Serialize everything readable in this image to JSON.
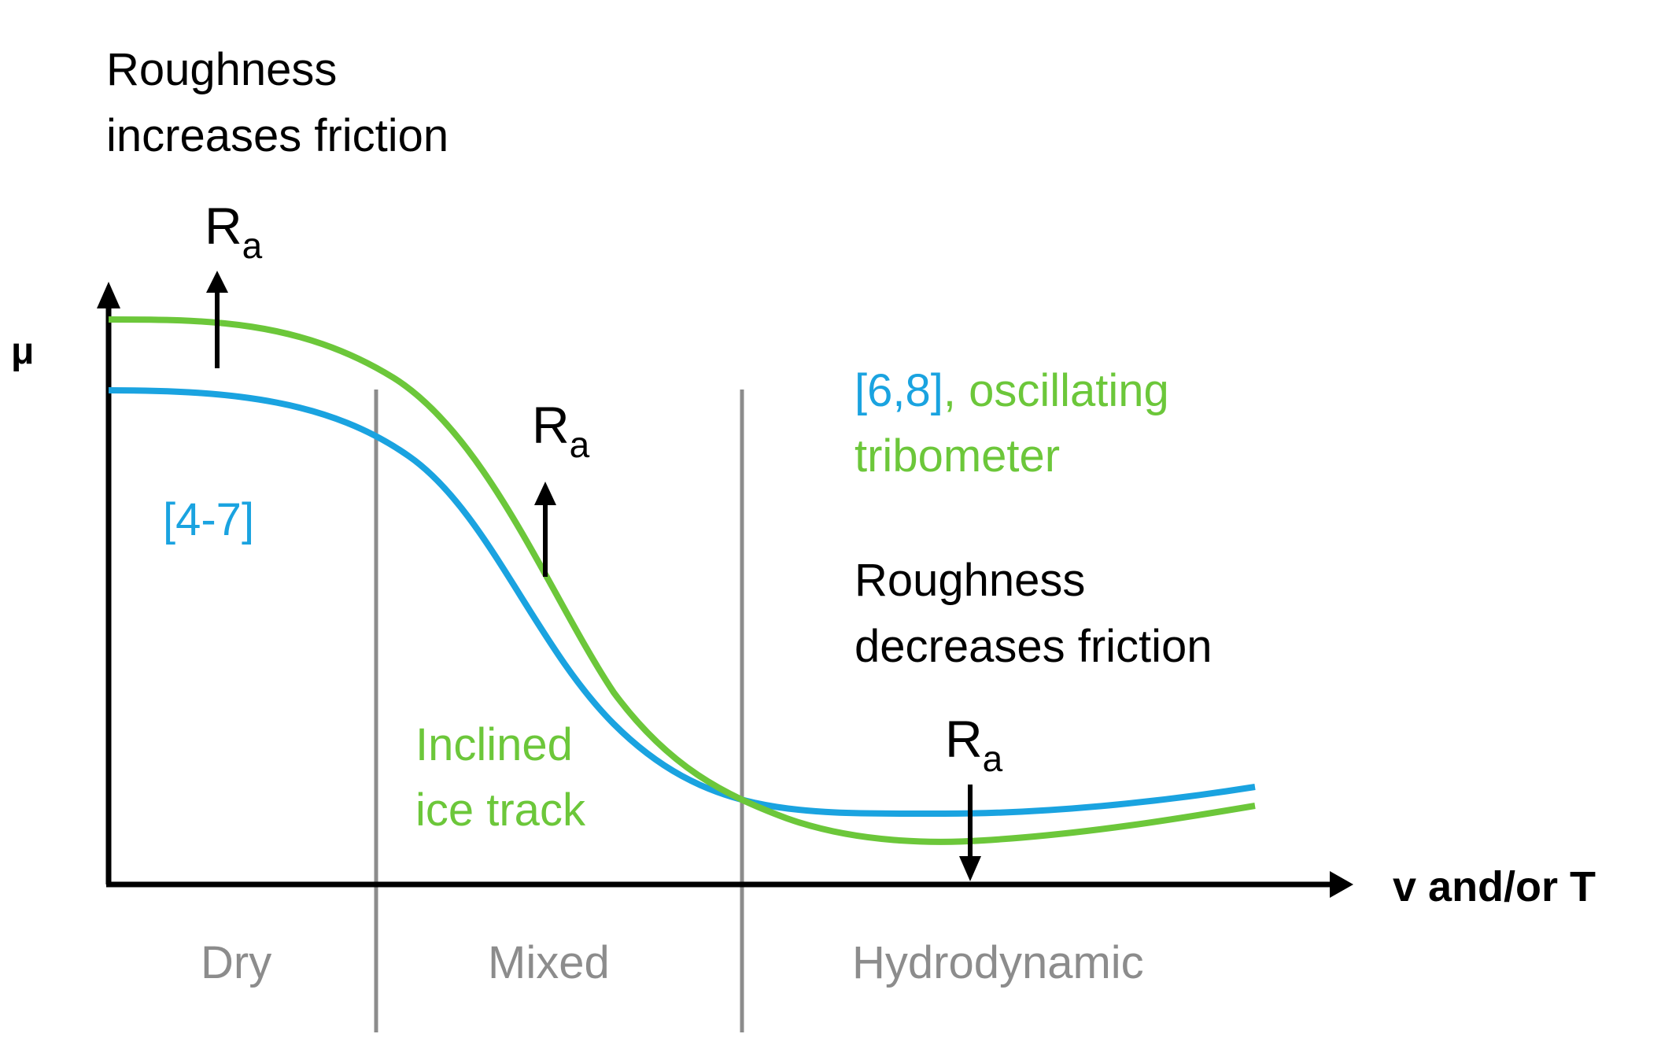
{
  "axes": {
    "y_label": "μ",
    "x_label": "v and/or T"
  },
  "regimes": [
    {
      "label": "Dry"
    },
    {
      "label": "Mixed"
    },
    {
      "label": "Hydrodynamic"
    }
  ],
  "annotations": {
    "top_left_line1": "Roughness",
    "top_left_line2": "increases friction",
    "mid_right_line1": "Roughness",
    "mid_right_line2": "decreases friction",
    "ra_symbol": "R",
    "ra_subscript": "a"
  },
  "curve_labels": {
    "blue_ref": "[4-7]",
    "green_line1": "Inclined",
    "green_line2": "ice track",
    "blue_ref2": "[6,8]",
    "green_suffix": ", oscillating",
    "green_line3": "tribometer"
  },
  "colors": {
    "blue": "#1aa3e0",
    "green": "#6cc73a",
    "divider": "#8c8c8c",
    "axis": "#000000"
  }
}
